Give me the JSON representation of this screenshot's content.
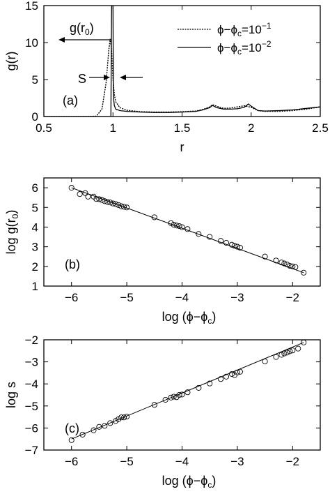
{
  "chart_data": [
    {
      "panel": "(a)",
      "type": "line",
      "xlabel": "r",
      "ylabel": "g(r)",
      "xlim": [
        0.5,
        2.5
      ],
      "ylim": [
        0,
        15
      ],
      "xticks": [
        "0.5",
        "1",
        "1.5",
        "2",
        "2.5"
      ],
      "yticks": [
        "0",
        "5",
        "10",
        "15"
      ],
      "legend_position": "top-right",
      "annotations": {
        "peak": "g(r₀)",
        "width": "s"
      },
      "series": [
        {
          "name": "ϕ−ϕc=10⁻¹",
          "style": "dotted",
          "x": [
            0.5,
            0.8,
            0.88,
            0.92,
            0.95,
            0.97,
            0.98,
            0.99,
            1.0,
            1.01,
            1.02,
            1.05,
            1.1,
            1.2,
            1.3,
            1.4,
            1.5,
            1.6,
            1.65,
            1.7,
            1.72,
            1.75,
            1.8,
            1.85,
            1.9,
            1.95,
            2.0,
            2.05,
            2.1,
            2.2,
            2.3,
            2.4,
            2.5
          ],
          "y": [
            0,
            0,
            0.05,
            1.0,
            4.5,
            9.0,
            10.5,
            9.0,
            5.0,
            3.0,
            2.0,
            1.2,
            0.85,
            0.65,
            0.6,
            0.6,
            0.65,
            0.75,
            0.95,
            1.3,
            1.6,
            1.4,
            1.1,
            1.15,
            1.3,
            1.45,
            1.25,
            0.8,
            0.7,
            0.7,
            0.8,
            1.0,
            1.3
          ]
        },
        {
          "name": "ϕ−ϕc=10⁻²",
          "style": "solid",
          "x": [
            0.5,
            0.97,
            0.985,
            0.99,
            0.995,
            1.0,
            1.003,
            1.006,
            1.01,
            1.02,
            1.05,
            1.1,
            1.2,
            1.3,
            1.4,
            1.5,
            1.6,
            1.65,
            1.7,
            1.72,
            1.75,
            1.8,
            1.85,
            1.9,
            1.95,
            1.98,
            2.0,
            2.05,
            2.1,
            2.2,
            2.3,
            2.4,
            2.5
          ],
          "y": [
            0,
            0,
            0,
            15,
            15,
            15,
            4.0,
            2.2,
            1.5,
            1.0,
            0.8,
            0.7,
            0.6,
            0.55,
            0.55,
            0.6,
            0.7,
            0.9,
            1.2,
            1.5,
            1.2,
            1.0,
            1.0,
            1.05,
            1.25,
            1.7,
            1.4,
            0.8,
            0.75,
            0.8,
            0.9,
            1.1,
            1.3
          ]
        }
      ]
    },
    {
      "panel": "(b)",
      "type": "scatter",
      "xlabel": "log (ϕ−ϕc)",
      "ylabel": "log g(r₀)",
      "xlim": [
        -6.5,
        -1.5
      ],
      "ylim": [
        1,
        6.5
      ],
      "xticks": [
        "−6",
        "−5",
        "−4",
        "−3",
        "−2"
      ],
      "yticks": [
        "1",
        "2",
        "3",
        "4",
        "5",
        "6"
      ],
      "fit_line": {
        "x": [
          -6.0,
          -1.8
        ],
        "y": [
          6.0,
          1.68
        ]
      },
      "points": {
        "x": [
          -6.0,
          -5.85,
          -5.75,
          -5.7,
          -5.6,
          -5.55,
          -5.5,
          -5.45,
          -5.4,
          -5.35,
          -5.3,
          -5.25,
          -5.2,
          -5.15,
          -5.1,
          -5.05,
          -5.0,
          -4.5,
          -4.2,
          -4.15,
          -4.1,
          -4.05,
          -4.0,
          -3.9,
          -3.7,
          -3.5,
          -3.3,
          -3.2,
          -3.1,
          -3.05,
          -3.0,
          -2.95,
          -2.5,
          -2.3,
          -2.2,
          -2.15,
          -2.1,
          -2.05,
          -2.0,
          -1.95,
          -1.8
        ],
        "y": [
          6.0,
          5.68,
          5.73,
          5.55,
          5.55,
          5.43,
          5.42,
          5.38,
          5.32,
          5.28,
          5.25,
          5.2,
          5.17,
          5.12,
          5.06,
          5.03,
          5.0,
          4.5,
          4.2,
          4.12,
          4.08,
          4.05,
          4.0,
          3.9,
          3.65,
          3.5,
          3.3,
          3.2,
          3.1,
          3.05,
          3.0,
          2.95,
          2.5,
          2.3,
          2.2,
          2.15,
          2.1,
          2.03,
          2.0,
          1.97,
          1.68
        ]
      }
    },
    {
      "panel": "(c)",
      "type": "scatter",
      "xlabel": "log (ϕ−ϕc)",
      "ylabel": "log s",
      "xlim": [
        -6.5,
        -1.5
      ],
      "ylim": [
        -7,
        -2
      ],
      "xticks": [
        "−6",
        "−5",
        "−4",
        "−3",
        "−2"
      ],
      "yticks": [
        "−7",
        "−6",
        "−5",
        "−4",
        "−3",
        "−2"
      ],
      "fit_line": {
        "x": [
          -6.0,
          -1.8
        ],
        "y": [
          -6.5,
          -2.12
        ]
      },
      "points": {
        "x": [
          -6.0,
          -5.8,
          -5.6,
          -5.5,
          -5.4,
          -5.3,
          -5.2,
          -5.15,
          -5.1,
          -5.05,
          -5.0,
          -4.5,
          -4.3,
          -4.2,
          -4.15,
          -4.1,
          -4.05,
          -4.0,
          -3.9,
          -3.7,
          -3.5,
          -3.3,
          -3.2,
          -3.1,
          -3.05,
          -3.0,
          -2.95,
          -2.5,
          -2.3,
          -2.2,
          -2.15,
          -2.1,
          -2.05,
          -2.0,
          -1.9,
          -1.8
        ],
        "y": [
          -6.55,
          -6.3,
          -6.1,
          -5.95,
          -5.9,
          -5.78,
          -5.68,
          -5.6,
          -5.52,
          -5.52,
          -5.48,
          -4.95,
          -4.72,
          -4.62,
          -4.58,
          -4.6,
          -4.5,
          -4.48,
          -4.38,
          -4.18,
          -3.98,
          -3.78,
          -3.67,
          -3.55,
          -3.6,
          -3.48,
          -3.45,
          -2.98,
          -2.78,
          -2.68,
          -2.62,
          -2.58,
          -2.52,
          -2.48,
          -2.4,
          -2.12
        ]
      }
    }
  ]
}
